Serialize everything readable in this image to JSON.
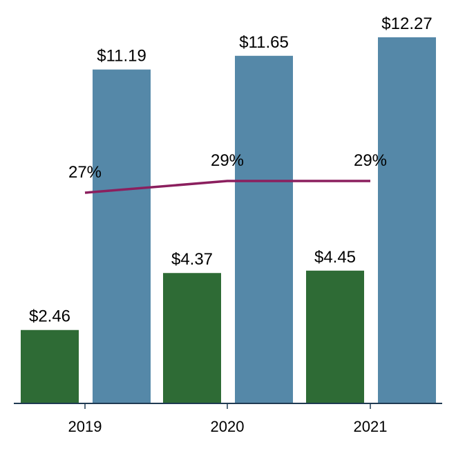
{
  "chart_data": {
    "type": "bar",
    "categories": [
      "2019",
      "2020",
      "2021"
    ],
    "series": [
      {
        "values": [
          2.46,
          4.37,
          4.45
        ],
        "labels": [
          "$2.46",
          "$4.37",
          "$4.45"
        ],
        "color": "#2e6b35"
      },
      {
        "values": [
          11.19,
          11.65,
          12.27
        ],
        "labels": [
          "$11.19",
          "$11.65",
          "$12.27"
        ],
        "color": "#5588a8"
      }
    ],
    "line_series": {
      "type": "line",
      "values": [
        27,
        29,
        29
      ],
      "labels": [
        "27%",
        "29%",
        "29%"
      ],
      "color": "#8b1f5e"
    },
    "ylim": [
      0,
      12.8
    ],
    "grid": false,
    "legend": "none",
    "axis_color": "#1f3a52"
  }
}
